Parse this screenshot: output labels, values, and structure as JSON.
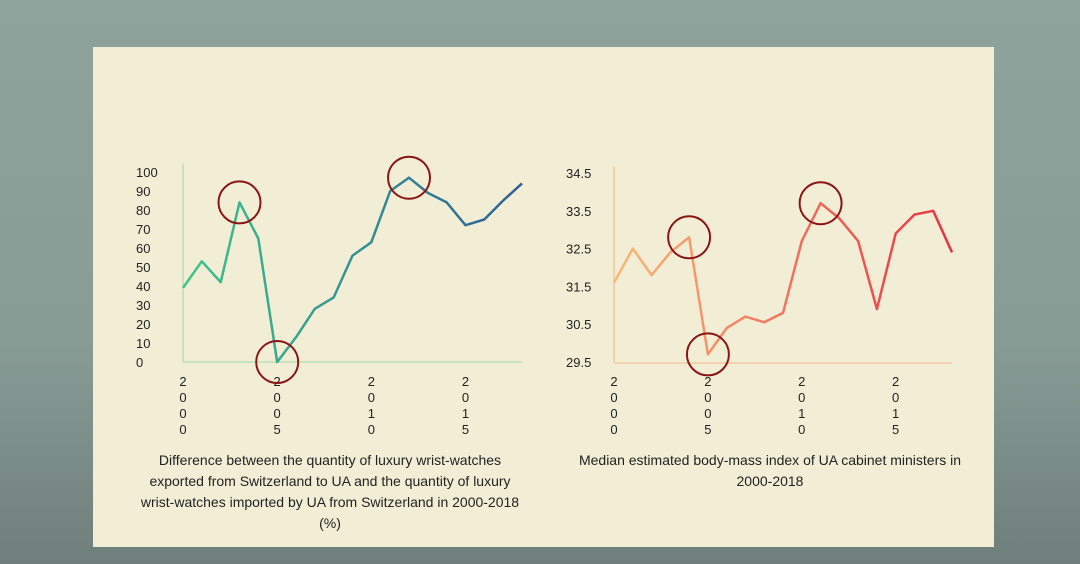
{
  "colors": {
    "slide_bg": "#f2eed6",
    "axis": "#b9e0b4",
    "axis2": "#f4c9a0",
    "circle": "#8b1515",
    "tick": "#222222"
  },
  "chart_data": [
    {
      "type": "line",
      "title": "Difference between the quantity of luxury wrist-watches exported from Switzerland to UA and the quantity of luxury wrist-watches imported by UA from Switzerland in 2000-2018 (%)",
      "caption_lines": [
        "Difference between the quantity of luxury wrist-watches",
        "exported from Switzerland to UA and the quantity of luxury",
        "wrist-watches imported by UA from Switzerland in 2000-2018",
        "(%)"
      ],
      "xlabel": "",
      "ylabel": "",
      "ylim": [
        0,
        100
      ],
      "yticks": [
        "100",
        "90",
        "80",
        "70",
        "60",
        "50",
        "40",
        "30",
        "20",
        "10",
        "0"
      ],
      "xticks": [
        {
          "year": 2000,
          "label": "2000"
        },
        {
          "year": 2005,
          "label": "2005"
        },
        {
          "year": 2010,
          "label": "2010"
        },
        {
          "year": 2015,
          "label": "2015"
        }
      ],
      "x": [
        2000,
        2001,
        2002,
        2003,
        2004,
        2005,
        2006,
        2007,
        2008,
        2009,
        2010,
        2011,
        2012,
        2013,
        2014,
        2015,
        2016,
        2017,
        2018
      ],
      "values": [
        39,
        53,
        42,
        84,
        65,
        0,
        13,
        28,
        34,
        56,
        63,
        90,
        97,
        89,
        84,
        72,
        75,
        85,
        94
      ],
      "gradient": [
        "#3dc48a",
        "#2f5f99"
      ],
      "highlights": [
        {
          "year": 2003,
          "value": 84
        },
        {
          "year": 2005,
          "value": 0
        },
        {
          "year": 2012,
          "value": 97
        }
      ]
    },
    {
      "type": "line",
      "title": "Median estimated body-mass index of UA cabinet ministers in 2000-2018",
      "caption_lines": [
        "Median estimated body-mass index of UA cabinet ministers in",
        "2000-2018"
      ],
      "xlabel": "",
      "ylabel": "",
      "ylim": [
        29.5,
        34.5
      ],
      "yticks": [
        "34.5",
        "33.5",
        "32.5",
        "31.5",
        "30.5",
        "29.5"
      ],
      "xticks": [
        {
          "year": 2000,
          "label": "2000"
        },
        {
          "year": 2005,
          "label": "2005"
        },
        {
          "year": 2010,
          "label": "2010"
        },
        {
          "year": 2015,
          "label": "2015"
        }
      ],
      "x": [
        2000,
        2001,
        2002,
        2003,
        2004,
        2005,
        2006,
        2007,
        2008,
        2009,
        2010,
        2011,
        2012,
        2013,
        2014,
        2015,
        2016,
        2017,
        2018
      ],
      "values": [
        31.6,
        32.5,
        31.8,
        32.4,
        32.8,
        29.7,
        30.4,
        30.7,
        30.55,
        30.8,
        32.7,
        33.7,
        33.3,
        32.7,
        30.9,
        32.9,
        33.4,
        33.5,
        32.4
      ],
      "gradient": [
        "#f9b87a",
        "#e63343"
      ],
      "highlights": [
        {
          "year": 2004,
          "value": 32.8
        },
        {
          "year": 2005,
          "value": 29.7
        },
        {
          "year": 2011,
          "value": 33.7
        }
      ]
    }
  ]
}
